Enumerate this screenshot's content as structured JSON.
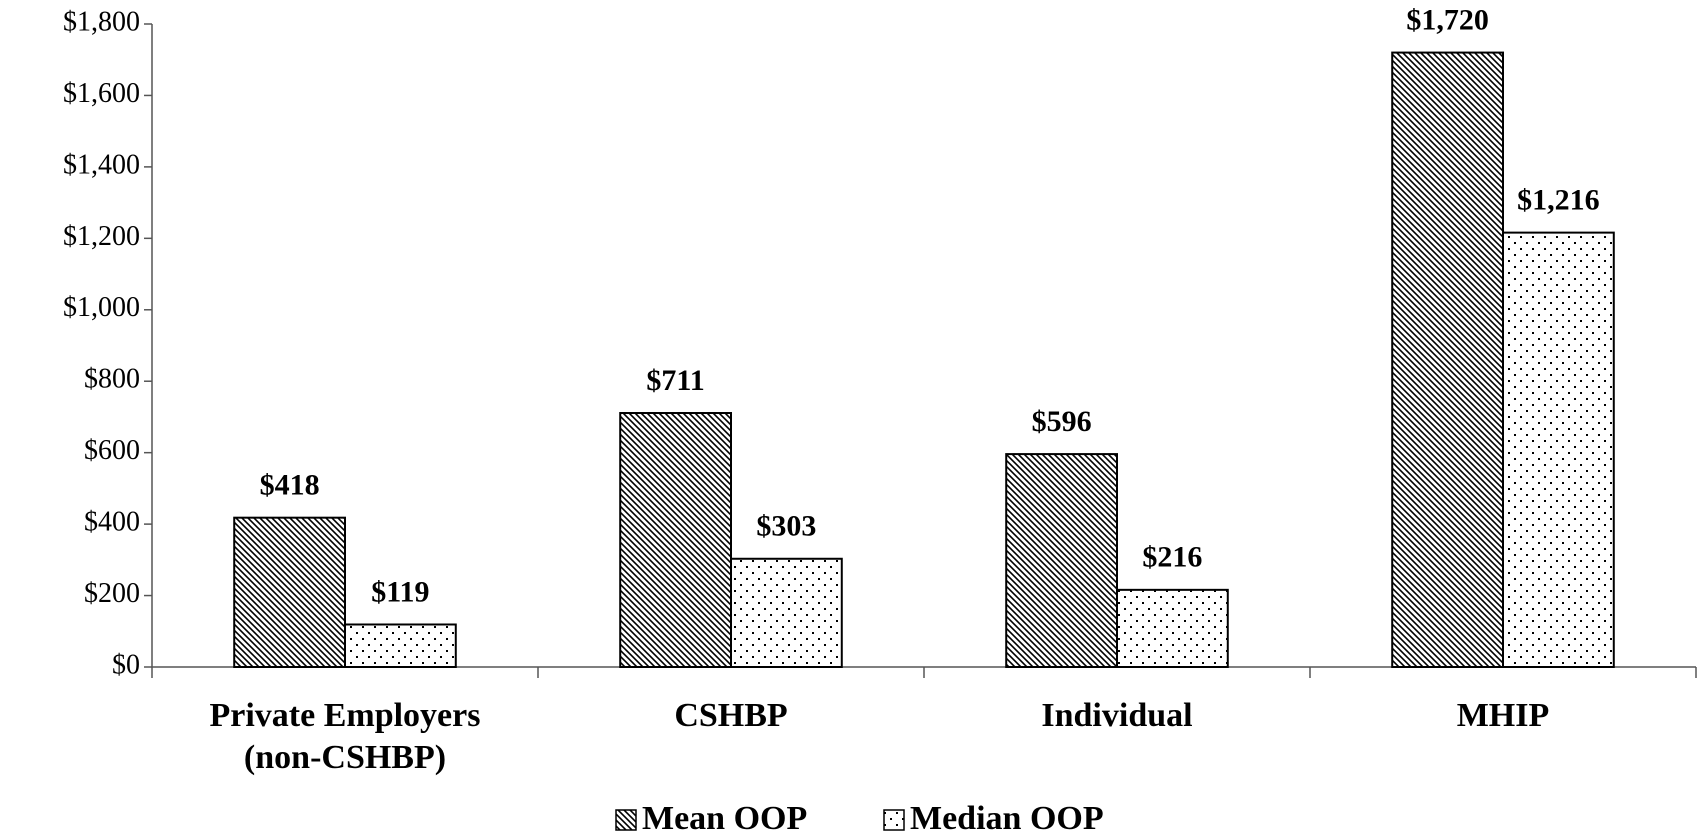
{
  "chart_data": {
    "type": "bar",
    "categories": [
      "Private Employers (non-CSHBP)",
      "CSHBP",
      "Individual",
      "MHIP"
    ],
    "series": [
      {
        "name": "Mean OOP",
        "color": "#000000",
        "pattern": "diagonal",
        "values": [
          418,
          711,
          596,
          1720
        ],
        "value_labels": [
          "$418",
          "$711",
          "$596",
          "$1,720"
        ]
      },
      {
        "name": "Median OOP",
        "color": "#000000",
        "pattern": "dots",
        "values": [
          119,
          303,
          216,
          1216
        ],
        "value_labels": [
          "$119",
          "$303",
          "$216",
          "$1,216"
        ]
      }
    ],
    "ylim": [
      0,
      1800
    ],
    "yticks": [
      {
        "value": 0,
        "label": "$0"
      },
      {
        "value": 200,
        "label": "$200"
      },
      {
        "value": 400,
        "label": "$400"
      },
      {
        "value": 600,
        "label": "$600"
      },
      {
        "value": 800,
        "label": "$800"
      },
      {
        "value": 1000,
        "label": "$1,000"
      },
      {
        "value": 1200,
        "label": "$1,200"
      },
      {
        "value": 1400,
        "label": "$1,400"
      },
      {
        "value": 1600,
        "label": "$1,600"
      },
      {
        "value": 1800,
        "label": "$1,800"
      }
    ],
    "grid": false,
    "legend": "bottom"
  }
}
